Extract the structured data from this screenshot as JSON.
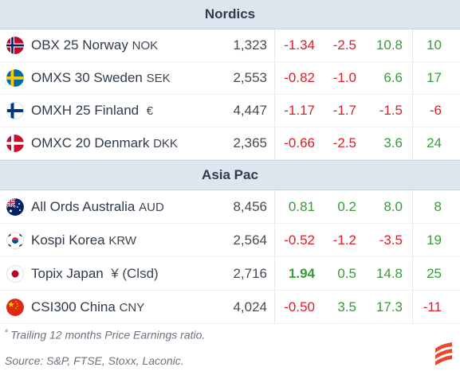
{
  "sections": [
    {
      "title": "Nordics",
      "rows": [
        {
          "name": "OBX 25 Norway",
          "cur": "NOK",
          "flag": "norway-flag-icon",
          "v1": "1,323",
          "v2": "-1.34",
          "v3": "-2.5",
          "v4": "10.8",
          "v5": "10"
        },
        {
          "name": "OMXS 30 Sweden",
          "cur": "SEK",
          "flag": "sweden-flag-icon",
          "v1": "2,553",
          "v2": "-0.82",
          "v3": "-1.0",
          "v4": "6.6",
          "v5": "17"
        },
        {
          "name": "OMXH 25 Finland",
          "cur": "€",
          "flag": "finland-flag-icon",
          "v1": "4,447",
          "v2": "-1.17",
          "v3": "-1.7",
          "v4": "-1.5",
          "v5": "-6"
        },
        {
          "name": "OMXC 20 Denmark",
          "cur": "DKK",
          "flag": "denmark-flag-icon",
          "v1": "2,365",
          "v2": "-0.66",
          "v3": "-2.5",
          "v4": "3.6",
          "v5": "24"
        }
      ]
    },
    {
      "title": "Asia Pac",
      "rows": [
        {
          "name": "All Ords Australia",
          "cur": "AUD",
          "flag": "australia-flag-icon",
          "v1": "8,456",
          "v2": "0.81",
          "v3": "0.2",
          "v4": "8.0",
          "v5": "8"
        },
        {
          "name": "Kospi Korea",
          "cur": "KRW",
          "flag": "korea-flag-icon",
          "v1": "2,564",
          "v2": "-0.52",
          "v3": "-1.2",
          "v4": "-3.5",
          "v5": "19"
        },
        {
          "name": "Topix Japan",
          "cur": "¥ (Clsd)",
          "flag": "japan-flag-icon",
          "v1": "2,716",
          "v2": "1.94",
          "v3": "0.5",
          "v4": "14.8",
          "v5": "25"
        },
        {
          "name": "CSI300 China",
          "cur": "CNY",
          "flag": "china-flag-icon",
          "v1": "4,024",
          "v2": "-0.50",
          "v3": "3.5",
          "v4": "17.3",
          "v5": "-11"
        }
      ]
    }
  ],
  "footnotes": {
    "pe_note": "Trailing 12 months Price Earnings ratio.",
    "pe_marker": "ª",
    "source": "Source: S&P, FTSE, Stoxx, Laconic."
  },
  "colors": {
    "negative": "#e31b23",
    "positive": "#3a9a3a",
    "header_bg": "#dde6ef",
    "brand": "#e8472e"
  }
}
